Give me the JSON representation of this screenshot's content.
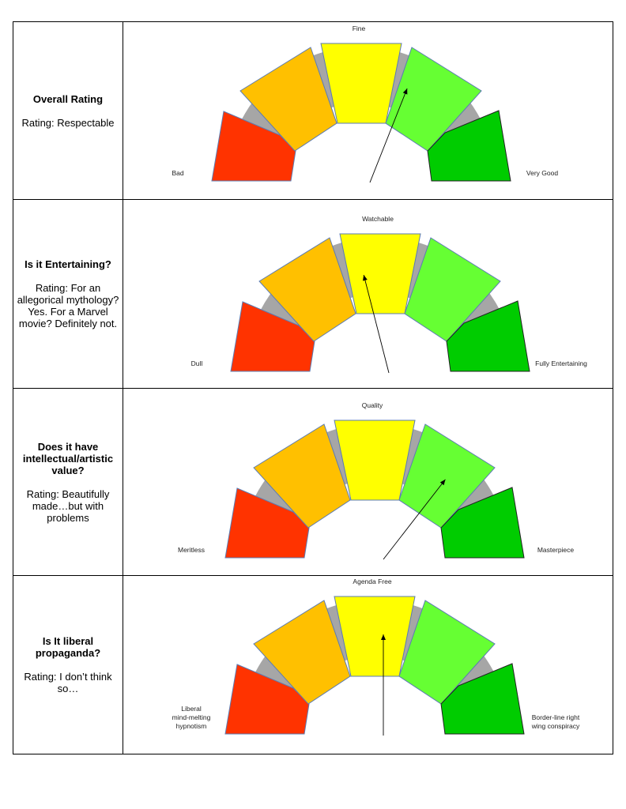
{
  "colors": {
    "gauge_bg": "#a6a6a6",
    "bad": "#ff3300",
    "poor": "#ffc000",
    "mid": "#ffff00",
    "good": "#66ff33",
    "best": "#00cc00",
    "outline": "#5b7bb3",
    "needle": "#000000"
  },
  "rows": [
    {
      "question": "Overall Rating",
      "rating": "Rating: Respectable",
      "gauge": {
        "top_label": "Fine",
        "left_label": [
          "Bad"
        ],
        "right_label": [
          "Very Good"
        ],
        "needle_value": 0.62
      }
    },
    {
      "question": "Is it Entertaining?",
      "rating": "Rating: For an allegorical mythology? Yes. For a Marvel movie? Definitely not.",
      "gauge": {
        "top_label": "Watchable",
        "left_label": [
          "Dull"
        ],
        "right_label": [
          "Fully Entertaining"
        ],
        "needle_value": 0.42
      }
    },
    {
      "question": "Does it have intellectual/artistic value?",
      "rating": "Rating: Beautifully made…but with problems",
      "gauge": {
        "top_label": "Quality",
        "left_label": [
          "Meritless"
        ],
        "right_label": [
          "Masterpiece"
        ],
        "needle_value": 0.71
      }
    },
    {
      "question": "Is It liberal propaganda?",
      "rating": "Rating: I don’t think so…",
      "gauge": {
        "top_label": "Agenda Free",
        "left_label": [
          "Liberal",
          "mind-melting",
          "hypnotism"
        ],
        "right_label": [
          "Border-line right",
          "wing conspiracy"
        ],
        "needle_value": 0.5
      }
    }
  ]
}
